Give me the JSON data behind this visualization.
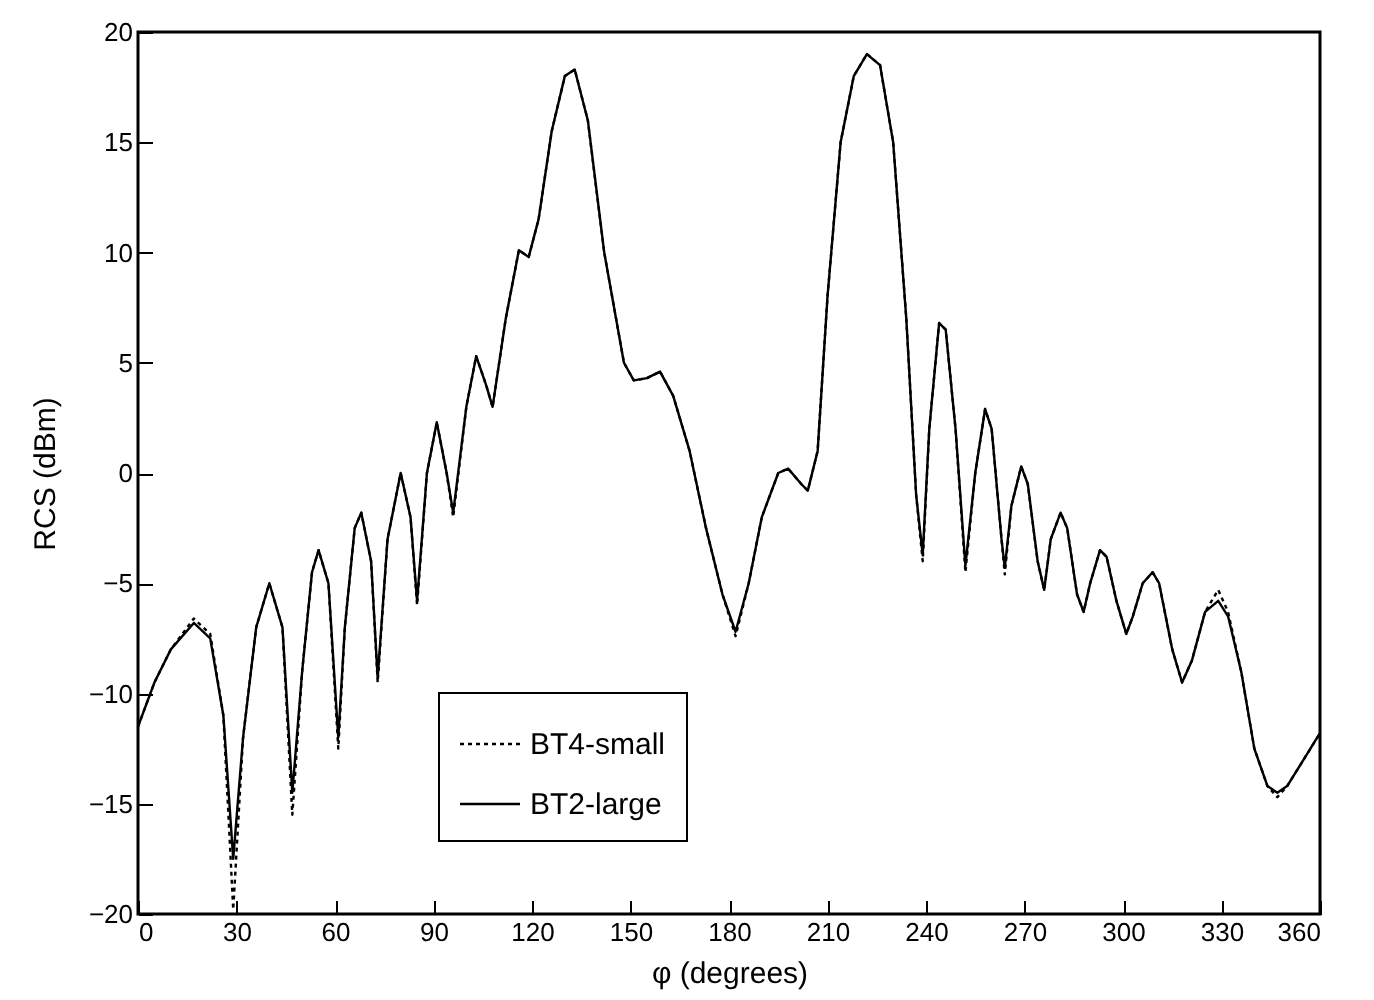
{
  "chart_data": {
    "type": "line",
    "xlabel": "φ (degrees)",
    "ylabel": "RCS (dBm)",
    "xlim": [
      0,
      360
    ],
    "ylim": [
      -20,
      20
    ],
    "xticks": [
      0,
      30,
      60,
      90,
      120,
      150,
      180,
      210,
      240,
      270,
      300,
      330,
      360
    ],
    "yticks": [
      -20,
      -15,
      -10,
      -5,
      0,
      5,
      10,
      15,
      20
    ],
    "grid": false,
    "legend": "bottom",
    "series": [
      {
        "name": "BT4-small",
        "color": "#000000",
        "line_style": "dotted",
        "x": [
          0,
          5,
          10,
          17,
          22,
          26,
          29,
          32,
          36,
          40,
          44,
          47,
          50,
          53,
          55,
          58,
          61,
          63,
          66,
          68,
          71,
          73,
          76,
          80,
          83,
          85,
          88,
          91,
          94,
          96,
          100,
          103,
          106,
          108,
          112,
          116,
          119,
          122,
          126,
          130,
          133,
          137,
          142,
          148,
          151,
          155,
          159,
          163,
          168,
          173,
          178,
          182,
          186,
          190,
          195,
          198,
          202,
          204,
          207,
          210,
          214,
          218,
          222,
          226,
          230,
          234,
          237,
          239,
          241,
          244,
          246,
          249,
          252,
          255,
          258,
          260,
          263,
          264,
          266,
          269,
          271,
          274,
          276,
          278,
          281,
          283,
          286,
          288,
          290,
          293,
          295,
          298,
          301,
          303,
          306,
          309,
          311,
          315,
          318,
          321,
          325,
          329,
          332,
          336,
          340,
          344,
          347,
          350,
          355,
          360
        ],
        "values": [
          -11.5,
          -9.5,
          -8,
          -6.6,
          -7.3,
          -11,
          -19.8,
          -12,
          -7,
          -5,
          -7,
          -15.5,
          -9,
          -4.5,
          -3.5,
          -5,
          -12.5,
          -7,
          -2.5,
          -1.8,
          -4,
          -9.5,
          -3,
          0,
          -2,
          -6,
          0,
          2.3,
          0,
          -2,
          3,
          5.3,
          4,
          3,
          7,
          10.1,
          9.8,
          11.5,
          15.5,
          18,
          18.3,
          16,
          10,
          5,
          4.2,
          4.3,
          4.6,
          3.5,
          1,
          -2.5,
          -5.5,
          -7.4,
          -5,
          -2,
          0,
          0.2,
          -0.5,
          -0.8,
          1,
          8,
          15,
          18,
          19,
          18.5,
          15,
          7,
          -1,
          -4,
          2,
          6.8,
          6.5,
          2,
          -4.5,
          0,
          2.9,
          2,
          -3,
          -4.6,
          -1.5,
          0.3,
          -0.5,
          -4,
          -5.3,
          -3,
          -1.8,
          -2.5,
          -5.5,
          -6.3,
          -5,
          -3.5,
          -3.8,
          -5.8,
          -7.3,
          -6.5,
          -5,
          -4.5,
          -5,
          -8,
          -9.5,
          -8.5,
          -6.3,
          -5.3,
          -6.3,
          -9,
          -12.5,
          -14.2,
          -14.7,
          -14.2,
          -13,
          -11.8
        ]
      },
      {
        "name": "BT2-large",
        "color": "#000000",
        "line_style": "solid",
        "x": [
          0,
          5,
          10,
          17,
          22,
          26,
          29,
          32,
          36,
          40,
          44,
          47,
          50,
          53,
          55,
          58,
          61,
          63,
          66,
          68,
          71,
          73,
          76,
          80,
          83,
          85,
          88,
          91,
          94,
          96,
          100,
          103,
          106,
          108,
          112,
          116,
          119,
          122,
          126,
          130,
          133,
          137,
          142,
          148,
          151,
          155,
          159,
          163,
          168,
          173,
          178,
          182,
          186,
          190,
          195,
          198,
          202,
          204,
          207,
          210,
          214,
          218,
          222,
          226,
          230,
          234,
          237,
          239,
          241,
          244,
          246,
          249,
          252,
          255,
          258,
          260,
          263,
          264,
          266,
          269,
          271,
          274,
          276,
          278,
          281,
          283,
          286,
          288,
          290,
          293,
          295,
          298,
          301,
          303,
          306,
          309,
          311,
          315,
          318,
          321,
          325,
          329,
          332,
          336,
          340,
          344,
          347,
          350,
          355,
          360
        ],
        "values": [
          -11.5,
          -9.5,
          -8,
          -6.8,
          -7.5,
          -11,
          -17.5,
          -12,
          -7,
          -5,
          -7,
          -14.5,
          -9,
          -4.5,
          -3.5,
          -5,
          -12,
          -7,
          -2.5,
          -1.8,
          -4,
          -9.3,
          -3,
          0,
          -2,
          -5.8,
          0,
          2.3,
          0,
          -1.8,
          3,
          5.3,
          4,
          3,
          7,
          10.1,
          9.8,
          11.5,
          15.5,
          18,
          18.3,
          16,
          10,
          5,
          4.2,
          4.3,
          4.6,
          3.5,
          1,
          -2.5,
          -5.5,
          -7.2,
          -5,
          -2,
          0,
          0.2,
          -0.5,
          -0.8,
          1,
          8,
          15,
          18,
          19,
          18.5,
          15,
          7,
          -1,
          -3.7,
          2,
          6.8,
          6.5,
          2,
          -4.2,
          0,
          2.9,
          2,
          -3,
          -4.3,
          -1.5,
          0.3,
          -0.5,
          -4,
          -5.3,
          -3,
          -1.8,
          -2.5,
          -5.5,
          -6.3,
          -5,
          -3.5,
          -3.8,
          -5.8,
          -7.3,
          -6.5,
          -5,
          -4.5,
          -5,
          -8,
          -9.5,
          -8.5,
          -6.3,
          -5.8,
          -6.5,
          -9,
          -12.5,
          -14.2,
          -14.5,
          -14.2,
          -13,
          -11.8
        ]
      }
    ]
  }
}
